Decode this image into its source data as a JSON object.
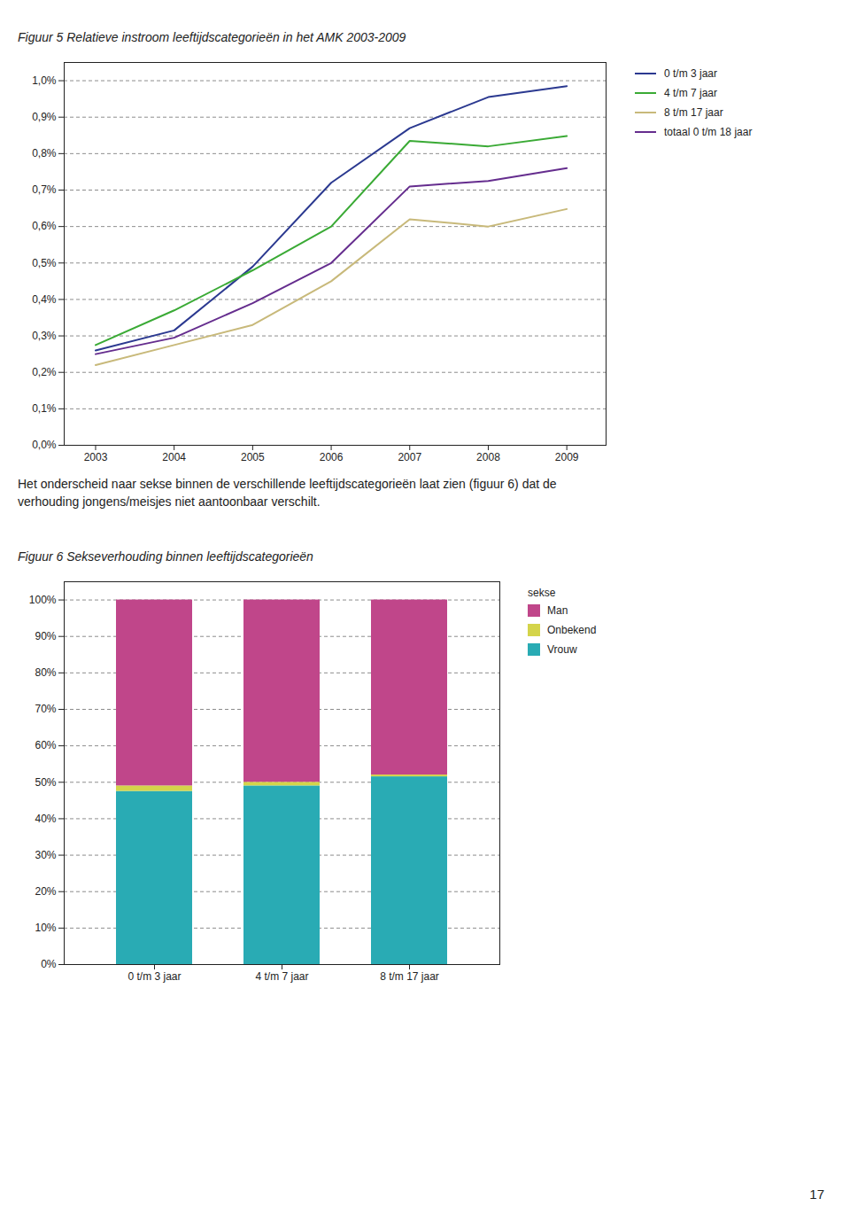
{
  "chart_data": [
    {
      "type": "line",
      "title": "Figuur 5 Relatieve instroom leeftijdscategorieën in het AMK 2003-2009",
      "x": [
        2003,
        2004,
        2005,
        2006,
        2007,
        2008,
        2009
      ],
      "series": [
        {
          "name": "0 t/m 3 jaar",
          "color": "#2B3990",
          "values": [
            0.0026,
            0.00315,
            0.0049,
            0.0072,
            0.0087,
            0.00955,
            0.00985
          ]
        },
        {
          "name": "4 t/m 7 jaar",
          "color": "#3AAA35",
          "values": [
            0.00275,
            0.0037,
            0.0048,
            0.006,
            0.00835,
            0.0082,
            0.00848
          ]
        },
        {
          "name": "8 t/m 17 jaar",
          "color": "#C8B97A",
          "values": [
            0.0022,
            0.00275,
            0.0033,
            0.0045,
            0.0062,
            0.006,
            0.00648
          ]
        },
        {
          "name": "totaal 0 t/m 18 jaar",
          "color": "#652D8E",
          "values": [
            0.0025,
            0.00295,
            0.0039,
            0.005,
            0.0071,
            0.00725,
            0.0076
          ]
        }
      ],
      "xlim": [
        2002.6,
        2009.5
      ],
      "xticks": [
        2003,
        2004,
        2005,
        2006,
        2007,
        2008,
        2009
      ],
      "ylim": [
        0.0,
        0.0105
      ],
      "yticks": [
        {
          "value": 0.0,
          "label": "0,0%"
        },
        {
          "value": 0.001,
          "label": "0,1%"
        },
        {
          "value": 0.002,
          "label": "0,2%"
        },
        {
          "value": 0.003,
          "label": "0,3%"
        },
        {
          "value": 0.004,
          "label": "0,4%"
        },
        {
          "value": 0.005,
          "label": "0,5%"
        },
        {
          "value": 0.006,
          "label": "0,6%"
        },
        {
          "value": 0.007,
          "label": "0,7%"
        },
        {
          "value": 0.008,
          "label": "0,8%"
        },
        {
          "value": 0.009,
          "label": "0,9%"
        },
        {
          "value": 0.01,
          "label": "1,0%"
        }
      ],
      "grid": true,
      "legend": "right"
    },
    {
      "type": "bar",
      "annotations": [
        "Het onderscheid naar sekse binnen de verschillende leeftijdscategorieën laat zien (figuur 6) dat de",
        "verhouding jongens/meisjes niet aantoonbaar verschilt."
      ],
      "title": "Figuur 6 Sekseverhouding binnen leeftijdscategorieën",
      "categories": [
        "0 t/m 3 jaar",
        "4 t/m 7 jaar",
        "8 t/m 17 jaar"
      ],
      "stacked": true,
      "legend_title": "sekse",
      "series": [
        {
          "name": "Man",
          "color": "#C0468A",
          "values": [
            51.0,
            50.0,
            48.0
          ]
        },
        {
          "name": "Onbekend",
          "color": "#D4D44A",
          "values": [
            1.5,
            1.0,
            0.5
          ]
        },
        {
          "name": "Vrouw",
          "color": "#29ABB4",
          "values": [
            47.5,
            49.0,
            51.5
          ]
        }
      ],
      "ylim": [
        0,
        105
      ],
      "yticks": [
        {
          "value": 0,
          "label": "0%"
        },
        {
          "value": 10,
          "label": "10%"
        },
        {
          "value": 20,
          "label": "20%"
        },
        {
          "value": 30,
          "label": "30%"
        },
        {
          "value": 40,
          "label": "40%"
        },
        {
          "value": 50,
          "label": "50%"
        },
        {
          "value": 60,
          "label": "60%"
        },
        {
          "value": 70,
          "label": "70%"
        },
        {
          "value": 80,
          "label": "80%"
        },
        {
          "value": 90,
          "label": "90%"
        },
        {
          "value": 100,
          "label": "100%"
        }
      ],
      "grid": true,
      "legend": "right"
    }
  ],
  "page_number": "17"
}
